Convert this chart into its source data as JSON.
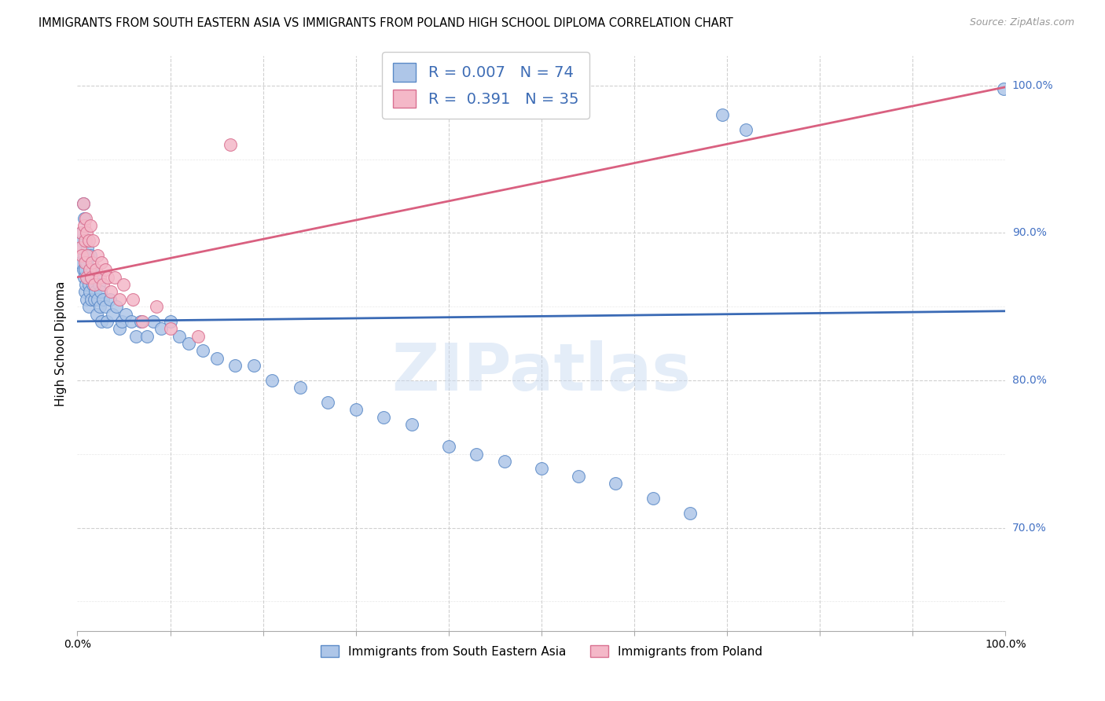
{
  "title": "IMMIGRANTS FROM SOUTH EASTERN ASIA VS IMMIGRANTS FROM POLAND HIGH SCHOOL DIPLOMA CORRELATION CHART",
  "source": "Source: ZipAtlas.com",
  "ylabel": "High School Diploma",
  "blue_R": 0.007,
  "blue_N": 74,
  "pink_R": 0.391,
  "pink_N": 35,
  "blue_color": "#aec6e8",
  "blue_edge_color": "#5b8ac7",
  "blue_line_color": "#3a6ab5",
  "pink_color": "#f4b8c8",
  "pink_edge_color": "#d97090",
  "pink_line_color": "#d96080",
  "blue_label": "Immigrants from South Eastern Asia",
  "pink_label": "Immigrants from Poland",
  "watermark": "ZIPatlas",
  "blue_x": [
    0.003,
    0.004,
    0.005,
    0.005,
    0.006,
    0.006,
    0.007,
    0.007,
    0.007,
    0.008,
    0.008,
    0.009,
    0.009,
    0.01,
    0.01,
    0.011,
    0.011,
    0.012,
    0.012,
    0.013,
    0.013,
    0.014,
    0.015,
    0.015,
    0.016,
    0.017,
    0.018,
    0.019,
    0.02,
    0.021,
    0.022,
    0.023,
    0.024,
    0.025,
    0.026,
    0.028,
    0.03,
    0.032,
    0.035,
    0.038,
    0.042,
    0.045,
    0.048,
    0.052,
    0.058,
    0.063,
    0.068,
    0.075,
    0.082,
    0.09,
    0.1,
    0.11,
    0.12,
    0.135,
    0.15,
    0.17,
    0.19,
    0.21,
    0.24,
    0.27,
    0.3,
    0.33,
    0.36,
    0.4,
    0.43,
    0.46,
    0.5,
    0.54,
    0.58,
    0.62,
    0.66,
    0.695,
    0.72,
    0.998
  ],
  "blue_y": [
    0.88,
    0.895,
    0.9,
    0.89,
    0.875,
    0.92,
    0.87,
    0.885,
    0.91,
    0.86,
    0.875,
    0.895,
    0.865,
    0.88,
    0.855,
    0.87,
    0.89,
    0.865,
    0.85,
    0.875,
    0.86,
    0.885,
    0.87,
    0.855,
    0.875,
    0.865,
    0.855,
    0.86,
    0.87,
    0.845,
    0.855,
    0.865,
    0.85,
    0.86,
    0.84,
    0.855,
    0.85,
    0.84,
    0.855,
    0.845,
    0.85,
    0.835,
    0.84,
    0.845,
    0.84,
    0.83,
    0.84,
    0.83,
    0.84,
    0.835,
    0.84,
    0.83,
    0.825,
    0.82,
    0.815,
    0.81,
    0.81,
    0.8,
    0.795,
    0.785,
    0.78,
    0.775,
    0.77,
    0.755,
    0.75,
    0.745,
    0.74,
    0.735,
    0.73,
    0.72,
    0.71,
    0.98,
    0.97,
    0.998
  ],
  "pink_x": [
    0.003,
    0.004,
    0.005,
    0.006,
    0.007,
    0.008,
    0.008,
    0.009,
    0.01,
    0.01,
    0.011,
    0.012,
    0.013,
    0.014,
    0.015,
    0.016,
    0.017,
    0.018,
    0.02,
    0.022,
    0.024,
    0.026,
    0.028,
    0.03,
    0.033,
    0.036,
    0.04,
    0.045,
    0.05,
    0.06,
    0.07,
    0.085,
    0.1,
    0.13,
    0.165
  ],
  "pink_y": [
    0.89,
    0.9,
    0.885,
    0.92,
    0.905,
    0.895,
    0.88,
    0.91,
    0.9,
    0.87,
    0.885,
    0.895,
    0.875,
    0.905,
    0.87,
    0.88,
    0.895,
    0.865,
    0.875,
    0.885,
    0.87,
    0.88,
    0.865,
    0.875,
    0.87,
    0.86,
    0.87,
    0.855,
    0.865,
    0.855,
    0.84,
    0.85,
    0.835,
    0.83,
    0.96
  ],
  "blue_line": [
    [
      0.0,
      0.84
    ],
    [
      1.0,
      0.847
    ]
  ],
  "pink_line": [
    [
      0.0,
      0.87
    ],
    [
      1.0,
      0.999
    ]
  ],
  "xlim": [
    0.0,
    1.0
  ],
  "ylim": [
    0.63,
    1.02
  ],
  "yticks": [
    0.7,
    0.8,
    0.9,
    1.0
  ],
  "ytick_labels": [
    "70.0%",
    "80.0%",
    "90.0%",
    "100.0%"
  ],
  "background_color": "#ffffff",
  "grid_color": "#d0d0d0",
  "right_tick_color": "#4472c4",
  "title_fontsize": 10.5,
  "source_fontsize": 9
}
